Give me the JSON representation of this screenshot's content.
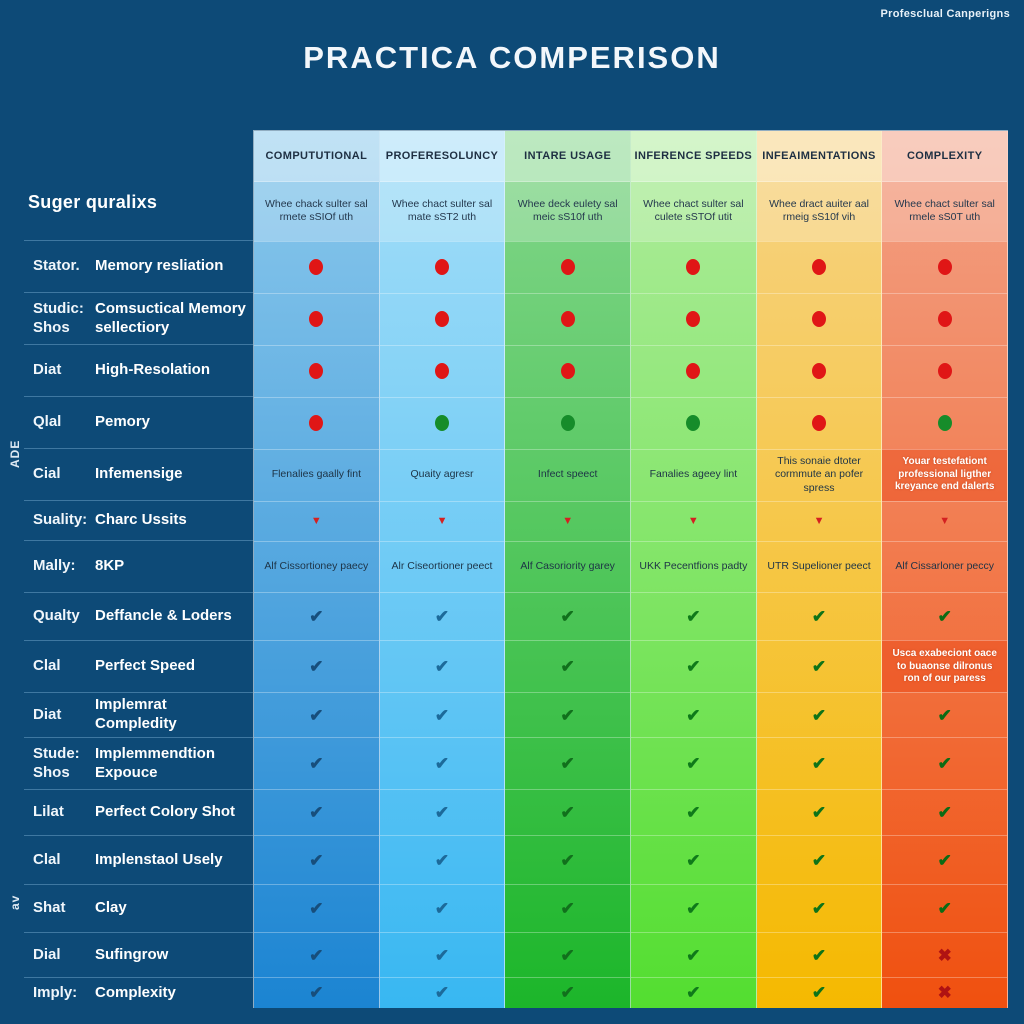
{
  "page": {
    "title": "PRACTICA COMPERISON",
    "brand": "Profesclual Canperigns"
  },
  "colors": {
    "background": "#0d4a77",
    "red_dot": "#e01616",
    "green_dot": "#168c2a",
    "triangle": "#d42121",
    "cross": "#b01212"
  },
  "left_panel": {
    "heading": "Suger quralixs",
    "vertical_labels": {
      "0": "ADE",
      "1": "av"
    }
  },
  "chart_data": {
    "type": "table",
    "title": "PRACTICA COMPERISON",
    "legend_position": "none",
    "columns": [
      {
        "title": "COMPUTUTIONAL",
        "subtitle": "Whee chack sulter sal rmete sSIOf uth",
        "gradient_top": "#8cc9ec",
        "gradient_bottom": "#1b84d2",
        "check_color": "#174e7c"
      },
      {
        "title": "PROFERESOLUNCY",
        "subtitle": "Whee chact sulter sal mate sST2 uth",
        "gradient_top": "#a5def8",
        "gradient_bottom": "#38b7f2",
        "check_color": "#1c6a9a"
      },
      {
        "title": "INTARE USAGE",
        "subtitle": "Whee deck eulety sal meic sS10f uth",
        "gradient_top": "#84d68c",
        "gradient_bottom": "#1cb62a",
        "check_color": "#11701c"
      },
      {
        "title": "INFERENCE SPEEDS",
        "subtitle": "Whee chact sulter sal culete sSTOf utit",
        "gradient_top": "#b0ec9e",
        "gradient_bottom": "#53de30",
        "check_color": "#0f7a1a"
      },
      {
        "title": "INFEAIMENTATIONS",
        "subtitle": "Whee dract auiter aal rmeig sS10f vih",
        "gradient_top": "#f6d386",
        "gradient_bottom": "#f5b900",
        "check_color": "#0e7318"
      },
      {
        "title": "COMPLEXITY",
        "subtitle": "Whee chact sulter sal rmele sS0T uth",
        "gradient_top": "#f3a287",
        "gradient_bottom": "#f0500f",
        "check_color": "#0c6b14"
      }
    ],
    "rows": [
      {
        "key": "Stator.",
        "label": "Memory resliation",
        "cells": [
          {
            "type": "dot",
            "color": "red"
          },
          {
            "type": "dot",
            "color": "red"
          },
          {
            "type": "dot",
            "color": "red"
          },
          {
            "type": "dot",
            "color": "red"
          },
          {
            "type": "dot",
            "color": "red"
          },
          {
            "type": "dot",
            "color": "red"
          }
        ]
      },
      {
        "key": "Studic: Shos",
        "label": "Comsuctical Memory sellectiory",
        "cells": [
          {
            "type": "dot",
            "color": "red"
          },
          {
            "type": "dot",
            "color": "red"
          },
          {
            "type": "dot",
            "color": "red"
          },
          {
            "type": "dot",
            "color": "red"
          },
          {
            "type": "dot",
            "color": "red"
          },
          {
            "type": "dot",
            "color": "red"
          }
        ]
      },
      {
        "key": "Diat",
        "label": "High-Resolation",
        "cells": [
          {
            "type": "dot",
            "color": "red"
          },
          {
            "type": "dot",
            "color": "red"
          },
          {
            "type": "dot",
            "color": "red"
          },
          {
            "type": "dot",
            "color": "red"
          },
          {
            "type": "dot",
            "color": "red"
          },
          {
            "type": "dot",
            "color": "red"
          }
        ]
      },
      {
        "key": "Qlal",
        "label": "Pemory",
        "cells": [
          {
            "type": "dot",
            "color": "red"
          },
          {
            "type": "dot",
            "color": "green"
          },
          {
            "type": "dot",
            "color": "green"
          },
          {
            "type": "dot",
            "color": "green"
          },
          {
            "type": "dot",
            "color": "red"
          },
          {
            "type": "dot",
            "color": "green"
          }
        ]
      },
      {
        "key": "Cial",
        "label": "Infemensige",
        "cells": [
          {
            "type": "text",
            "text": "Flenalies gaally fint"
          },
          {
            "type": "text",
            "text": "Quaity agresr"
          },
          {
            "type": "text",
            "text": "Infect speect"
          },
          {
            "type": "text",
            "text": "Fanalies ageey lint"
          },
          {
            "type": "text",
            "text": "This sonaie dtoter cormmute an pofer spress"
          },
          {
            "type": "highlight",
            "text": "Youar testefationt professional ligther kreyance end dalerts"
          }
        ]
      },
      {
        "key": "Suality:",
        "label": "Charc Ussits",
        "cells": [
          {
            "type": "tri"
          },
          {
            "type": "tri"
          },
          {
            "type": "tri"
          },
          {
            "type": "tri"
          },
          {
            "type": "tri"
          },
          {
            "type": "tri"
          }
        ]
      },
      {
        "key": "Mally:",
        "label": "8KP",
        "cells": [
          {
            "type": "text",
            "text": "Alf Cissortioney paecy"
          },
          {
            "type": "text",
            "text": "Alr Ciseortioner peect"
          },
          {
            "type": "text",
            "text": "Alf Casoriority garey"
          },
          {
            "type": "text",
            "text": "UKK Pecentfions padty"
          },
          {
            "type": "text",
            "text": "UTR Supelioner peect"
          },
          {
            "type": "text",
            "text": "Alf Cissarloner peccy"
          }
        ]
      },
      {
        "key": "Qualty",
        "label": "Deffancle & Loders",
        "cells": [
          {
            "type": "check"
          },
          {
            "type": "check"
          },
          {
            "type": "check"
          },
          {
            "type": "check"
          },
          {
            "type": "check"
          },
          {
            "type": "check"
          }
        ]
      },
      {
        "key": "Clal",
        "label": "Perfect Speed",
        "cells": [
          {
            "type": "check"
          },
          {
            "type": "check"
          },
          {
            "type": "check"
          },
          {
            "type": "check"
          },
          {
            "type": "check"
          },
          {
            "type": "highlight",
            "text": "Usca exabeciont oace to buaonse dilronus ron of our paress"
          }
        ]
      },
      {
        "key": "Diat",
        "label": "Implemrat Compledity",
        "cells": [
          {
            "type": "check"
          },
          {
            "type": "check"
          },
          {
            "type": "check"
          },
          {
            "type": "check"
          },
          {
            "type": "check"
          },
          {
            "type": "check"
          }
        ]
      },
      {
        "key": "Stude: Shos",
        "label": "Implemmendtion Expouce",
        "cells": [
          {
            "type": "check"
          },
          {
            "type": "check"
          },
          {
            "type": "check"
          },
          {
            "type": "check"
          },
          {
            "type": "check"
          },
          {
            "type": "check"
          }
        ]
      },
      {
        "key": "Lilat",
        "label": "Perfect Colory Shot",
        "cells": [
          {
            "type": "check"
          },
          {
            "type": "check"
          },
          {
            "type": "check"
          },
          {
            "type": "check"
          },
          {
            "type": "check"
          },
          {
            "type": "check"
          }
        ]
      },
      {
        "key": "Clal",
        "label": "Implenstaol Usely",
        "cells": [
          {
            "type": "check"
          },
          {
            "type": "check"
          },
          {
            "type": "check"
          },
          {
            "type": "check"
          },
          {
            "type": "check"
          },
          {
            "type": "check"
          }
        ]
      },
      {
        "key": "Shat",
        "label": "Clay",
        "cells": [
          {
            "type": "check"
          },
          {
            "type": "check"
          },
          {
            "type": "check"
          },
          {
            "type": "check"
          },
          {
            "type": "check"
          },
          {
            "type": "check"
          }
        ]
      },
      {
        "key": "Dial",
        "label": "Sufingrow",
        "cells": [
          {
            "type": "check"
          },
          {
            "type": "check"
          },
          {
            "type": "check"
          },
          {
            "type": "check"
          },
          {
            "type": "check"
          },
          {
            "type": "cross"
          }
        ]
      },
      {
        "key": "Imply:",
        "label": "Complexity",
        "cells": [
          {
            "type": "check"
          },
          {
            "type": "check"
          },
          {
            "type": "check"
          },
          {
            "type": "check"
          },
          {
            "type": "check"
          },
          {
            "type": "cross"
          }
        ]
      }
    ]
  }
}
